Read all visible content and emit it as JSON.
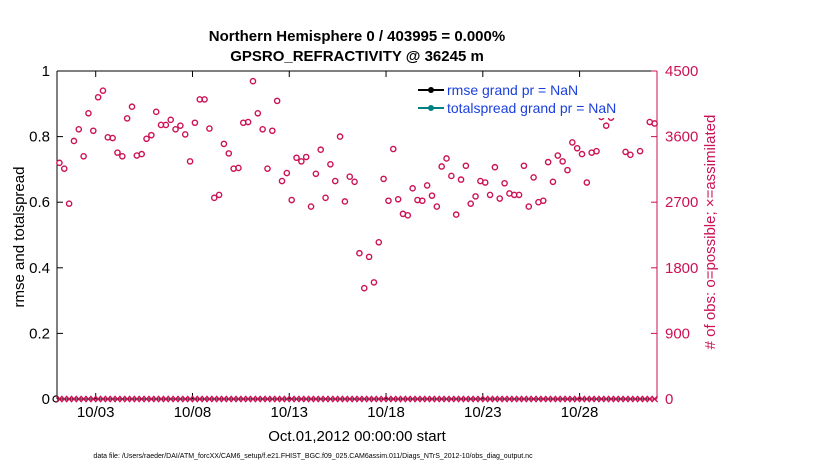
{
  "chart_data": {
    "type": "scatter",
    "title_line1": "Northern Hemisphere 0 / 403995 = 0.000%",
    "title_line2": "GPSRO_REFRACTIVITY @ 36245 m",
    "ylabel_left": "rmse and totalspread",
    "ylabel_right": "# of obs: o=possible; ×=assimilated",
    "xlabel": "Oct.01,2012 00:00:00 start",
    "footer": "data file: /Users/raeder/DAI/ATM_forcXX/CAM6_setup/f.e21.FHIST_BGC.f09_025.CAM6assim.011/Diags_NTrS_2012-10/obs_diag_output.nc",
    "ylim_left": [
      0,
      1
    ],
    "yticks_left": [
      "0",
      "0.2",
      "0.4",
      "0.6",
      "0.8",
      "1"
    ],
    "ylim_right": [
      0,
      4500
    ],
    "yticks_right": [
      "0",
      "900",
      "1800",
      "2700",
      "3600",
      "4500"
    ],
    "xlim": [
      0,
      31
    ],
    "xtick_positions": [
      2,
      7,
      12,
      17,
      22,
      27
    ],
    "xtick_labels": [
      "10/03",
      "10/08",
      "10/13",
      "10/18",
      "10/23",
      "10/28"
    ],
    "legend": {
      "placement": "top-right",
      "entries": [
        {
          "label": "rmse grand pr = NaN",
          "color": "#000000"
        },
        {
          "label": "totalspread grand pr = NaN",
          "color": "#008080"
        }
      ]
    },
    "series": [
      {
        "name": "possible",
        "marker": "o",
        "color": "#cc1155",
        "x": [
          0.125,
          0.375,
          0.625,
          0.875,
          1.125,
          1.375,
          1.625,
          1.875,
          2.125,
          2.375,
          2.625,
          2.875,
          3.125,
          3.375,
          3.625,
          3.875,
          4.125,
          4.375,
          4.625,
          4.875,
          5.125,
          5.375,
          5.625,
          5.875,
          6.125,
          6.375,
          6.625,
          6.875,
          7.125,
          7.375,
          7.625,
          7.875,
          8.125,
          8.375,
          8.625,
          8.875,
          9.125,
          9.375,
          9.625,
          9.875,
          10.125,
          10.375,
          10.625,
          10.875,
          11.125,
          11.375,
          11.625,
          11.875,
          12.125,
          12.375,
          12.625,
          12.875,
          13.125,
          13.375,
          13.625,
          13.875,
          14.125,
          14.375,
          14.625,
          14.875,
          15.125,
          15.375,
          15.625,
          15.875,
          16.125,
          16.375,
          16.625,
          16.875,
          17.125,
          17.375,
          17.625,
          17.875,
          18.125,
          18.375,
          18.625,
          18.875,
          19.125,
          19.375,
          19.625,
          19.875,
          20.125,
          20.375,
          20.625,
          20.875,
          21.125,
          21.375,
          21.625,
          21.875,
          22.125,
          22.375,
          22.625,
          22.875,
          23.125,
          23.375,
          23.625,
          23.875,
          24.125,
          24.375,
          24.625,
          24.875,
          25.125,
          25.375,
          25.625,
          25.875,
          26.125,
          26.375,
          26.625,
          26.875,
          27.125,
          27.375,
          27.625,
          27.875,
          28.125,
          28.375,
          28.625,
          28.875,
          29.125,
          29.375,
          29.625,
          29.875,
          30.125,
          30.375,
          30.625,
          30.875
        ],
        "y": [
          3240,
          3160,
          2680,
          3540,
          3700,
          3330,
          3920,
          3680,
          4140,
          4230,
          3590,
          3580,
          3380,
          3330,
          3850,
          4010,
          3340,
          3360,
          3570,
          3620,
          3940,
          3760,
          3760,
          3830,
          3700,
          3750,
          3630,
          3260,
          3790,
          4110,
          4110,
          3710,
          2760,
          2800,
          3500,
          3370,
          3160,
          3170,
          3790,
          3800,
          4360,
          3920,
          3700,
          3160,
          3680,
          4090,
          2990,
          3100,
          2730,
          3310,
          3260,
          3320,
          2640,
          3090,
          3420,
          2760,
          3220,
          2990,
          3600,
          2710,
          3050,
          2980,
          2000,
          1520,
          1950,
          1600,
          2150,
          3020,
          2720,
          3430,
          2740,
          2540,
          2520,
          2890,
          2730,
          2720,
          2930,
          2790,
          2640,
          3190,
          3300,
          3060,
          2530,
          3010,
          3200,
          2680,
          2780,
          2990,
          2970,
          2800,
          3180,
          2750,
          2960,
          2820,
          2800,
          2800,
          3200,
          2640,
          3040,
          2700,
          2720,
          3250,
          2980,
          3340,
          3260,
          3140,
          3520,
          3440,
          3360,
          2970,
          3380,
          3400,
          3870,
          3750,
          3860,
          3980,
          4160,
          3390,
          3350,
          4150,
          3400,
          4160,
          3800,
          3780
        ],
        "y_axis": "right"
      },
      {
        "name": "assimilated",
        "marker": "×",
        "color": "#cc1155",
        "value_all": 0,
        "y_axis": "right"
      }
    ]
  }
}
